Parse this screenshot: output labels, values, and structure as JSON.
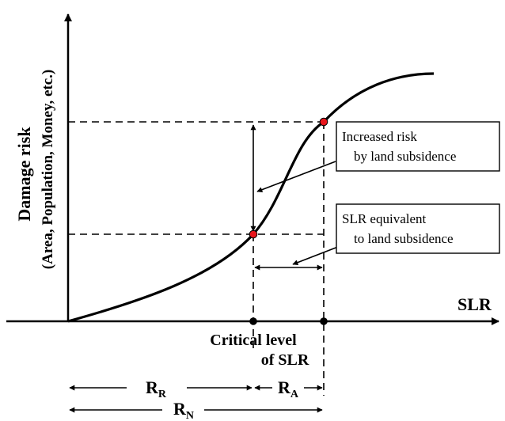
{
  "axes": {
    "x_label": "SLR",
    "y_label_line1": "Damage risk",
    "y_label_line2": "(Area, Population, Money, etc.)"
  },
  "annotations": {
    "increased_risk": {
      "line1": "Increased risk",
      "line2": "by land subsidence"
    },
    "slr_equivalent": {
      "line1": "SLR equivalent",
      "line2": "to land subsidence"
    },
    "critical_level": {
      "line1": "Critical level",
      "line2": "of SLR"
    }
  },
  "ranges": {
    "r_r": {
      "main": "R",
      "sub": "R"
    },
    "r_a": {
      "main": "R",
      "sub": "A"
    },
    "r_n": {
      "main": "R",
      "sub": "N"
    }
  },
  "colors": {
    "point_fill": "#e8151b",
    "line": "#000000",
    "background": "#ffffff"
  }
}
